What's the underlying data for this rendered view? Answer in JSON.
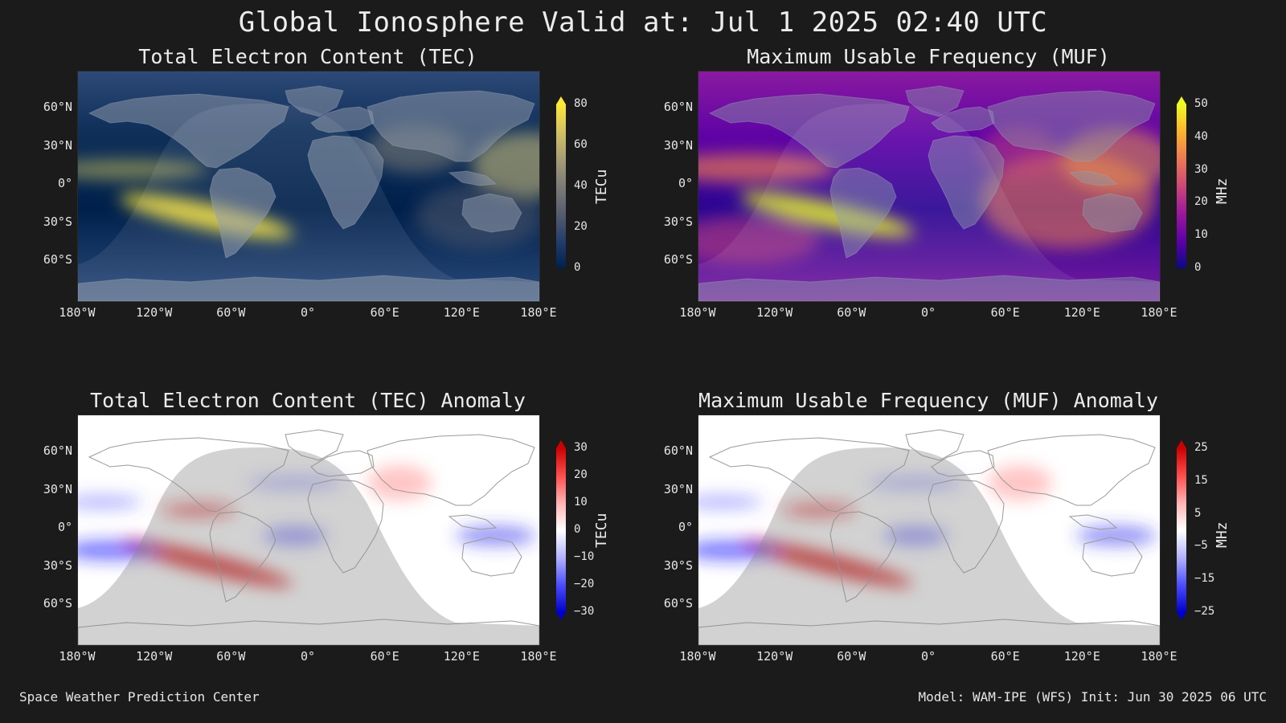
{
  "title": "Global Ionosphere Valid at: Jul 1 2025 02:40 UTC",
  "footer": {
    "left": "Space Weather Prediction Center",
    "right": "Model: WAM-IPE (WFS) Init: Jun 30 2025 06 UTC"
  },
  "axes": {
    "lat_labels": [
      "60°N",
      "30°N",
      "0°",
      "30°S",
      "60°S"
    ],
    "lon_labels": [
      "180°W",
      "120°W",
      "60°W",
      "0°",
      "60°E",
      "120°E",
      "180°E"
    ]
  },
  "panels": {
    "tec": {
      "title": "Total Electron Content (TEC)",
      "colorbar_label": "TECu",
      "ticks": [
        "0",
        "20",
        "40",
        "60",
        "80"
      ],
      "colors": [
        "#00204c",
        "#233e6c",
        "#575d6d",
        "#7c7b78",
        "#a69d75",
        "#d3c164",
        "#fee838"
      ]
    },
    "muf": {
      "title": "Maximum Usable Frequency (MUF)",
      "colorbar_label": "MHz",
      "ticks": [
        "0",
        "10",
        "20",
        "30",
        "40",
        "50"
      ],
      "colors": [
        "#0d0887",
        "#5c01a6",
        "#9c179e",
        "#cc4778",
        "#ed7953",
        "#fdb42f",
        "#f0f921"
      ]
    },
    "tec_anom": {
      "title": "Total Electron Content (TEC) Anomaly",
      "colorbar_label": "TECu",
      "ticks": [
        "30",
        "20",
        "10",
        "0",
        "−10",
        "−20",
        "−30"
      ],
      "colors": [
        "#cc0000",
        "#ff4d4d",
        "#ffb3b3",
        "#ffffff",
        "#b3b3ff",
        "#4d4dff",
        "#0000cc"
      ]
    },
    "muf_anom": {
      "title": "Maximum Usable Frequency (MUF) Anomaly",
      "colorbar_label": "MHz",
      "ticks": [
        "25",
        "15",
        "5",
        "−5",
        "−15",
        "−25"
      ],
      "colors": [
        "#cc0000",
        "#ff4d4d",
        "#ffb3b3",
        "#ffffff",
        "#b3b3ff",
        "#4d4dff",
        "#0000cc"
      ]
    }
  }
}
